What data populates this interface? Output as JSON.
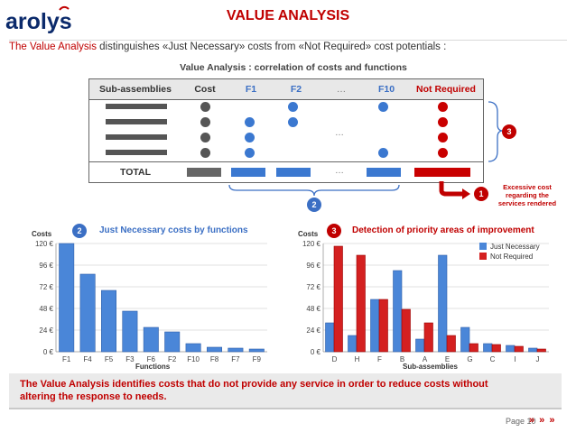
{
  "logo": {
    "text": "arolys",
    "colors": {
      "text": "#0b2a6b",
      "accent": "#c00000"
    }
  },
  "title": "VALUE ANALYSIS",
  "subtitle": {
    "highlight": "The Value Analysis",
    "rest": " distinguishes «Just Necessary» costs from «Not Required» cost potentials :"
  },
  "table": {
    "title": "Value Analysis : correlation of costs and functions",
    "headers": [
      "Sub-assemblies",
      "Cost",
      "F1",
      "F2",
      "…",
      "F10",
      "Not Required"
    ],
    "total_label": "TOTAL",
    "ellipsis": "…"
  },
  "badges": {
    "one": "1",
    "two": "2",
    "three": "3"
  },
  "excess_note": "Excessive cost regarding the services rendered",
  "chart_left": {
    "badge": "2",
    "heading": "Just Necessary costs by functions",
    "ylabel": "Costs",
    "xlabel": "Functions"
  },
  "chart_right": {
    "badge": "3",
    "heading": "Detection of priority areas of improvement",
    "ylabel": "Costs",
    "xlabel": "Sub-assemblies"
  },
  "chart_data": [
    {
      "type": "bar",
      "title": "Just Necessary costs by functions",
      "xlabel": "Functions",
      "ylabel": "Costs",
      "categories": [
        "F1",
        "F4",
        "F5",
        "F3",
        "F6",
        "F2",
        "F10",
        "F8",
        "F7",
        "F9"
      ],
      "values": [
        120,
        86,
        68,
        45,
        27,
        22,
        9,
        5,
        4,
        3
      ],
      "yticks": [
        "0 €",
        "24 €",
        "48 €",
        "72 €",
        "96 €",
        "120 €"
      ],
      "ylim": [
        0,
        120
      ],
      "grid": true,
      "colors": [
        "#4a86d8"
      ]
    },
    {
      "type": "bar",
      "title": "Detection of priority areas of improvement",
      "xlabel": "Sub-assemblies",
      "ylabel": "Costs",
      "categories": [
        "D",
        "H",
        "F",
        "B",
        "A",
        "E",
        "G",
        "C",
        "I",
        "J"
      ],
      "series": [
        {
          "name": "Just Necessary",
          "values": [
            32,
            18,
            58,
            90,
            14,
            107,
            27,
            9,
            7,
            4
          ]
        },
        {
          "name": "Not Required",
          "values": [
            117,
            107,
            58,
            47,
            32,
            18,
            9,
            8,
            6,
            3
          ]
        }
      ],
      "yticks": [
        "0 €",
        "24 €",
        "48 €",
        "72 €",
        "96 €",
        "120 €"
      ],
      "ylim": [
        0,
        120
      ],
      "legend": "top-right",
      "grid": true,
      "colors": [
        "#4a86d8",
        "#d42020"
      ]
    }
  ],
  "footer": {
    "text": "The Value Analysis identifies costs that do not provide any service in order to reduce costs without altering the response to needs."
  },
  "page": {
    "label": "Page 10",
    "arrows": "» » »"
  }
}
